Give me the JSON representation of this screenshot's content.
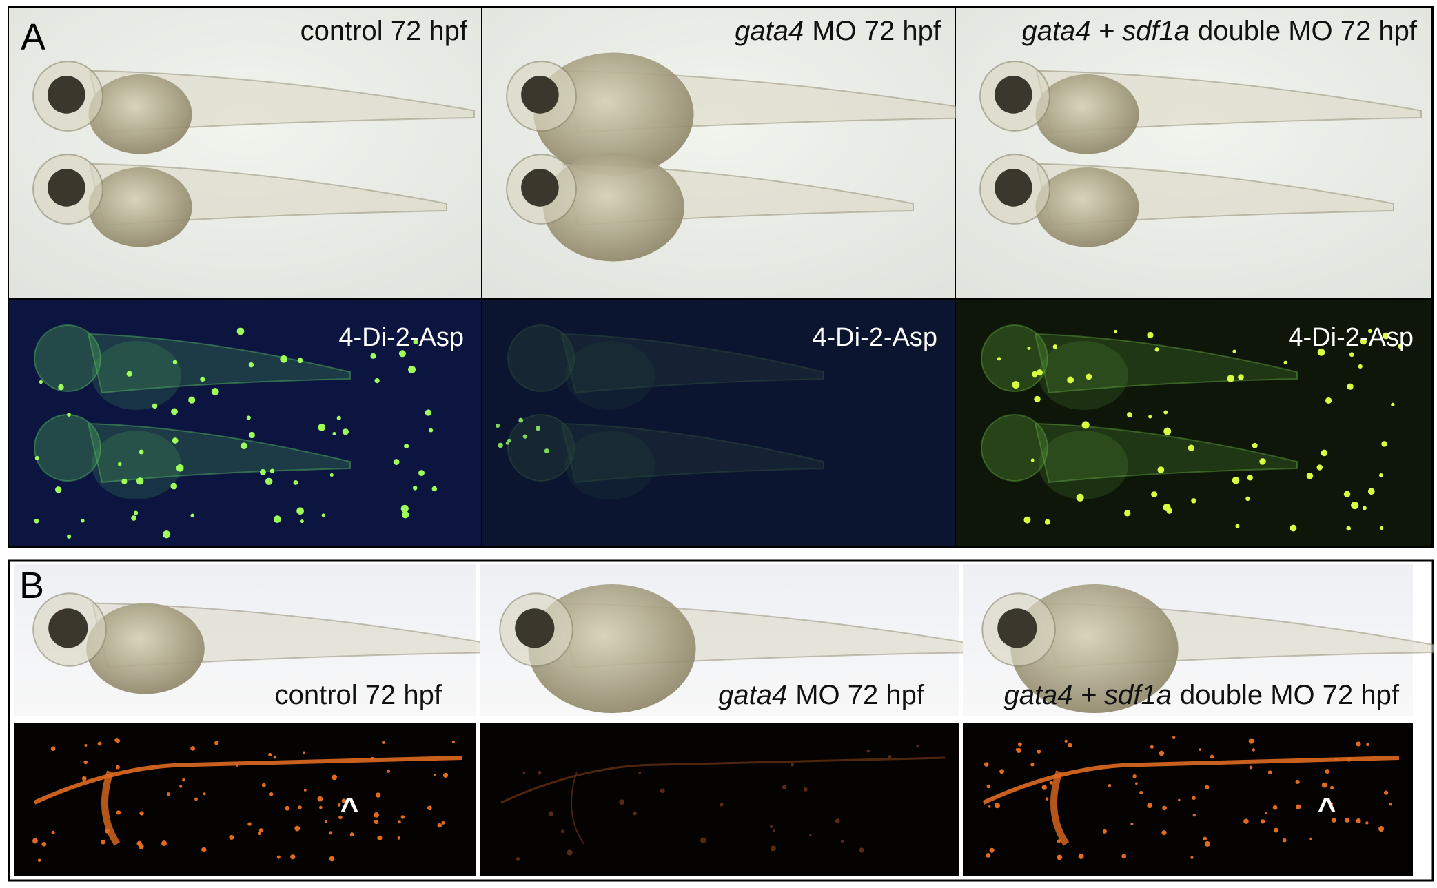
{
  "panel_a": {
    "label": "A",
    "columns": [
      {
        "caption": [
          {
            "text": "control 72 hpf",
            "italic": false
          }
        ],
        "stain": "4-Di-2-Asp"
      },
      {
        "caption": [
          {
            "text": "gata4",
            "italic": true
          },
          {
            "text": "MO 72 hpf",
            "italic": false
          }
        ],
        "stain": "4-Di-2-Asp"
      },
      {
        "caption": [
          {
            "text": "gata4 + sdf1a",
            "italic": true
          },
          {
            "text": "double MO 72 hpf",
            "italic": false
          }
        ],
        "stain": "4-Di-2-Asp"
      }
    ]
  },
  "panel_b": {
    "label": "B",
    "columns": [
      {
        "caption": [
          {
            "text": "control 72 hpf",
            "italic": false
          }
        ],
        "arrowhead": "^"
      },
      {
        "caption": [
          {
            "text": "gata4",
            "italic": true
          },
          {
            "text": "MO 72 hpf",
            "italic": false
          }
        ]
      },
      {
        "caption": [
          {
            "text": "gata4 + sdf1a",
            "italic": true
          },
          {
            "text": "double MO 72 hpf",
            "italic": false
          }
        ],
        "arrowhead": "^"
      }
    ]
  }
}
